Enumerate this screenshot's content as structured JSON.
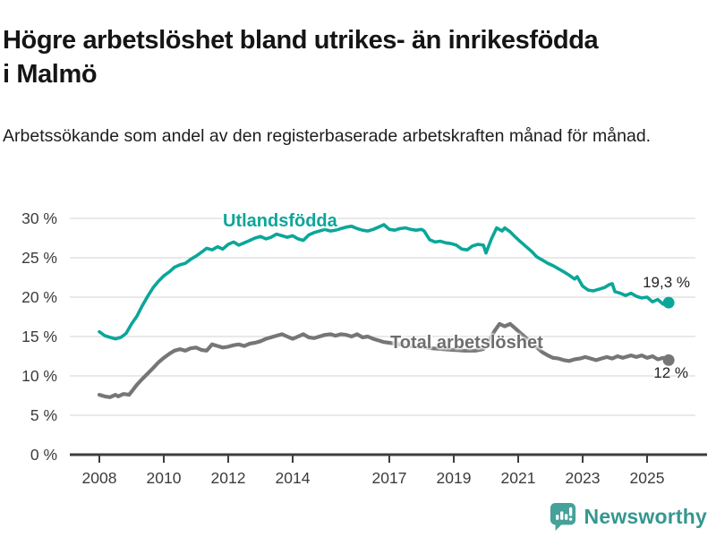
{
  "header": {
    "title": "Högre arbetslöshet bland utrikes- än inrikesfödda i Malmö",
    "subtitle": "Arbetssökande som andel av den registerbaserade arbetskraften månad för månad."
  },
  "footer": {
    "brand": "Newsworthy"
  },
  "colors": {
    "accent_teal": "#0ba69a",
    "line_gray": "#767676",
    "brand_teal": "#35978f",
    "gridline": "#dcdcdc",
    "axis": "#3d3d3d",
    "axis_text": "#3c3c3c"
  },
  "chart_data": {
    "type": "line",
    "title": "Högre arbetslöshet bland utrikes- än inrikesfödda i Malmö",
    "xlabel": "",
    "ylabel": "",
    "grid": true,
    "ylim": [
      0,
      30
    ],
    "xlim": [
      2008,
      2025.83
    ],
    "y_ticks": [
      {
        "value": 0,
        "label": "0 %"
      },
      {
        "value": 5,
        "label": "5 %"
      },
      {
        "value": 10,
        "label": "10 %"
      },
      {
        "value": 15,
        "label": "15 %"
      },
      {
        "value": 20,
        "label": "20 %"
      },
      {
        "value": 25,
        "label": "25 %"
      },
      {
        "value": 30,
        "label": "30 %"
      }
    ],
    "x_ticks": [
      {
        "value": 2008,
        "label": "2008"
      },
      {
        "value": 2010,
        "label": "2010"
      },
      {
        "value": 2012,
        "label": "2012"
      },
      {
        "value": 2014,
        "label": "2014"
      },
      {
        "value": 2017,
        "label": "2017"
      },
      {
        "value": 2019,
        "label": "2019"
      },
      {
        "value": 2021,
        "label": "2021"
      },
      {
        "value": 2023,
        "label": "2023"
      },
      {
        "value": 2025,
        "label": "2025"
      }
    ],
    "series": [
      {
        "name": "Utlandsfödda",
        "color": "#0ba69a",
        "end_label": "19,3 %",
        "end_value": 19.3,
        "points": [
          [
            2008.0,
            15.6
          ],
          [
            2008.17,
            15.1
          ],
          [
            2008.33,
            14.9
          ],
          [
            2008.5,
            14.7
          ],
          [
            2008.67,
            14.9
          ],
          [
            2008.83,
            15.4
          ],
          [
            2009.0,
            16.6
          ],
          [
            2009.17,
            17.6
          ],
          [
            2009.33,
            18.9
          ],
          [
            2009.5,
            20.1
          ],
          [
            2009.67,
            21.2
          ],
          [
            2009.83,
            22.0
          ],
          [
            2010.0,
            22.7
          ],
          [
            2010.17,
            23.2
          ],
          [
            2010.33,
            23.8
          ],
          [
            2010.5,
            24.1
          ],
          [
            2010.67,
            24.3
          ],
          [
            2010.83,
            24.8
          ],
          [
            2011.0,
            25.2
          ],
          [
            2011.17,
            25.7
          ],
          [
            2011.33,
            26.2
          ],
          [
            2011.5,
            26.0
          ],
          [
            2011.67,
            26.4
          ],
          [
            2011.83,
            26.1
          ],
          [
            2012.0,
            26.7
          ],
          [
            2012.17,
            27.0
          ],
          [
            2012.33,
            26.6
          ],
          [
            2012.5,
            26.9
          ],
          [
            2012.67,
            27.2
          ],
          [
            2012.83,
            27.5
          ],
          [
            2013.0,
            27.7
          ],
          [
            2013.17,
            27.4
          ],
          [
            2013.33,
            27.6
          ],
          [
            2013.5,
            28.0
          ],
          [
            2013.67,
            27.8
          ],
          [
            2013.83,
            27.6
          ],
          [
            2014.0,
            27.8
          ],
          [
            2014.17,
            27.4
          ],
          [
            2014.33,
            27.2
          ],
          [
            2014.5,
            27.9
          ],
          [
            2014.67,
            28.2
          ],
          [
            2014.83,
            28.4
          ],
          [
            2015.0,
            28.6
          ],
          [
            2015.17,
            28.4
          ],
          [
            2015.33,
            28.5
          ],
          [
            2015.5,
            28.7
          ],
          [
            2015.67,
            28.9
          ],
          [
            2015.83,
            29.0
          ],
          [
            2016.0,
            28.7
          ],
          [
            2016.17,
            28.5
          ],
          [
            2016.33,
            28.4
          ],
          [
            2016.5,
            28.6
          ],
          [
            2016.67,
            28.9
          ],
          [
            2016.83,
            29.2
          ],
          [
            2017.0,
            28.6
          ],
          [
            2017.17,
            28.5
          ],
          [
            2017.33,
            28.7
          ],
          [
            2017.5,
            28.8
          ],
          [
            2017.67,
            28.6
          ],
          [
            2017.83,
            28.5
          ],
          [
            2018.0,
            28.6
          ],
          [
            2018.08,
            28.4
          ],
          [
            2018.25,
            27.3
          ],
          [
            2018.42,
            27.0
          ],
          [
            2018.58,
            27.1
          ],
          [
            2018.75,
            26.9
          ],
          [
            2018.92,
            26.8
          ],
          [
            2019.08,
            26.6
          ],
          [
            2019.25,
            26.1
          ],
          [
            2019.42,
            26.0
          ],
          [
            2019.58,
            26.5
          ],
          [
            2019.75,
            26.7
          ],
          [
            2019.92,
            26.6
          ],
          [
            2020.0,
            25.6
          ],
          [
            2020.17,
            27.4
          ],
          [
            2020.33,
            28.8
          ],
          [
            2020.5,
            28.4
          ],
          [
            2020.58,
            28.8
          ],
          [
            2020.75,
            28.3
          ],
          [
            2020.92,
            27.6
          ],
          [
            2021.08,
            27.0
          ],
          [
            2021.25,
            26.4
          ],
          [
            2021.42,
            25.8
          ],
          [
            2021.58,
            25.1
          ],
          [
            2021.75,
            24.7
          ],
          [
            2021.92,
            24.3
          ],
          [
            2022.08,
            24.0
          ],
          [
            2022.25,
            23.6
          ],
          [
            2022.42,
            23.2
          ],
          [
            2022.58,
            22.8
          ],
          [
            2022.75,
            22.3
          ],
          [
            2022.83,
            22.6
          ],
          [
            2023.0,
            21.4
          ],
          [
            2023.17,
            20.9
          ],
          [
            2023.33,
            20.8
          ],
          [
            2023.5,
            21.0
          ],
          [
            2023.67,
            21.2
          ],
          [
            2023.83,
            21.6
          ],
          [
            2023.92,
            21.7
          ],
          [
            2024.0,
            20.7
          ],
          [
            2024.17,
            20.5
          ],
          [
            2024.33,
            20.2
          ],
          [
            2024.5,
            20.5
          ],
          [
            2024.67,
            20.1
          ],
          [
            2024.83,
            19.9
          ],
          [
            2025.0,
            20.0
          ],
          [
            2025.17,
            19.4
          ],
          [
            2025.33,
            19.7
          ],
          [
            2025.5,
            19.1
          ],
          [
            2025.67,
            19.3
          ]
        ]
      },
      {
        "name": "Total arbetslöshet",
        "color": "#767676",
        "end_label": "12 %",
        "end_value": 12.0,
        "points": [
          [
            2008.0,
            7.6
          ],
          [
            2008.17,
            7.4
          ],
          [
            2008.33,
            7.3
          ],
          [
            2008.5,
            7.6
          ],
          [
            2008.58,
            7.4
          ],
          [
            2008.75,
            7.7
          ],
          [
            2008.92,
            7.6
          ],
          [
            2009.0,
            8.0
          ],
          [
            2009.17,
            8.9
          ],
          [
            2009.33,
            9.6
          ],
          [
            2009.5,
            10.3
          ],
          [
            2009.67,
            11.0
          ],
          [
            2009.83,
            11.7
          ],
          [
            2010.0,
            12.3
          ],
          [
            2010.17,
            12.8
          ],
          [
            2010.33,
            13.2
          ],
          [
            2010.5,
            13.4
          ],
          [
            2010.67,
            13.2
          ],
          [
            2010.83,
            13.5
          ],
          [
            2011.0,
            13.6
          ],
          [
            2011.17,
            13.3
          ],
          [
            2011.33,
            13.2
          ],
          [
            2011.5,
            14.0
          ],
          [
            2011.67,
            13.8
          ],
          [
            2011.83,
            13.6
          ],
          [
            2012.0,
            13.7
          ],
          [
            2012.17,
            13.9
          ],
          [
            2012.33,
            14.0
          ],
          [
            2012.5,
            13.8
          ],
          [
            2012.67,
            14.1
          ],
          [
            2012.83,
            14.2
          ],
          [
            2013.0,
            14.4
          ],
          [
            2013.17,
            14.7
          ],
          [
            2013.33,
            14.9
          ],
          [
            2013.5,
            15.1
          ],
          [
            2013.67,
            15.3
          ],
          [
            2013.83,
            15.0
          ],
          [
            2014.0,
            14.7
          ],
          [
            2014.17,
            15.0
          ],
          [
            2014.33,
            15.3
          ],
          [
            2014.5,
            14.9
          ],
          [
            2014.67,
            14.8
          ],
          [
            2014.83,
            15.0
          ],
          [
            2015.0,
            15.2
          ],
          [
            2015.17,
            15.3
          ],
          [
            2015.33,
            15.1
          ],
          [
            2015.5,
            15.3
          ],
          [
            2015.67,
            15.2
          ],
          [
            2015.83,
            15.0
          ],
          [
            2016.0,
            15.3
          ],
          [
            2016.17,
            14.9
          ],
          [
            2016.33,
            15.0
          ],
          [
            2016.5,
            14.7
          ],
          [
            2016.67,
            14.5
          ],
          [
            2016.83,
            14.3
          ],
          [
            2017.0,
            14.2
          ],
          [
            2017.33,
            14.0
          ],
          [
            2017.67,
            13.8
          ],
          [
            2018.0,
            13.7
          ],
          [
            2018.33,
            13.5
          ],
          [
            2018.67,
            13.4
          ],
          [
            2019.0,
            13.3
          ],
          [
            2019.33,
            13.2
          ],
          [
            2019.67,
            13.2
          ],
          [
            2019.92,
            13.4
          ],
          [
            2020.08,
            14.2
          ],
          [
            2020.25,
            15.6
          ],
          [
            2020.42,
            16.6
          ],
          [
            2020.58,
            16.3
          ],
          [
            2020.75,
            16.6
          ],
          [
            2020.92,
            16.0
          ],
          [
            2021.08,
            15.4
          ],
          [
            2021.25,
            14.8
          ],
          [
            2021.42,
            14.2
          ],
          [
            2021.58,
            13.6
          ],
          [
            2021.75,
            13.0
          ],
          [
            2021.92,
            12.6
          ],
          [
            2022.08,
            12.3
          ],
          [
            2022.25,
            12.2
          ],
          [
            2022.42,
            12.0
          ],
          [
            2022.58,
            11.9
          ],
          [
            2022.75,
            12.1
          ],
          [
            2022.92,
            12.2
          ],
          [
            2023.08,
            12.4
          ],
          [
            2023.25,
            12.2
          ],
          [
            2023.42,
            12.0
          ],
          [
            2023.58,
            12.2
          ],
          [
            2023.75,
            12.4
          ],
          [
            2023.92,
            12.2
          ],
          [
            2024.08,
            12.5
          ],
          [
            2024.25,
            12.3
          ],
          [
            2024.5,
            12.6
          ],
          [
            2024.67,
            12.4
          ],
          [
            2024.83,
            12.6
          ],
          [
            2025.0,
            12.3
          ],
          [
            2025.17,
            12.5
          ],
          [
            2025.33,
            12.1
          ],
          [
            2025.5,
            12.3
          ],
          [
            2025.67,
            12.0
          ]
        ]
      }
    ],
    "legend_position": "inline-labels"
  }
}
